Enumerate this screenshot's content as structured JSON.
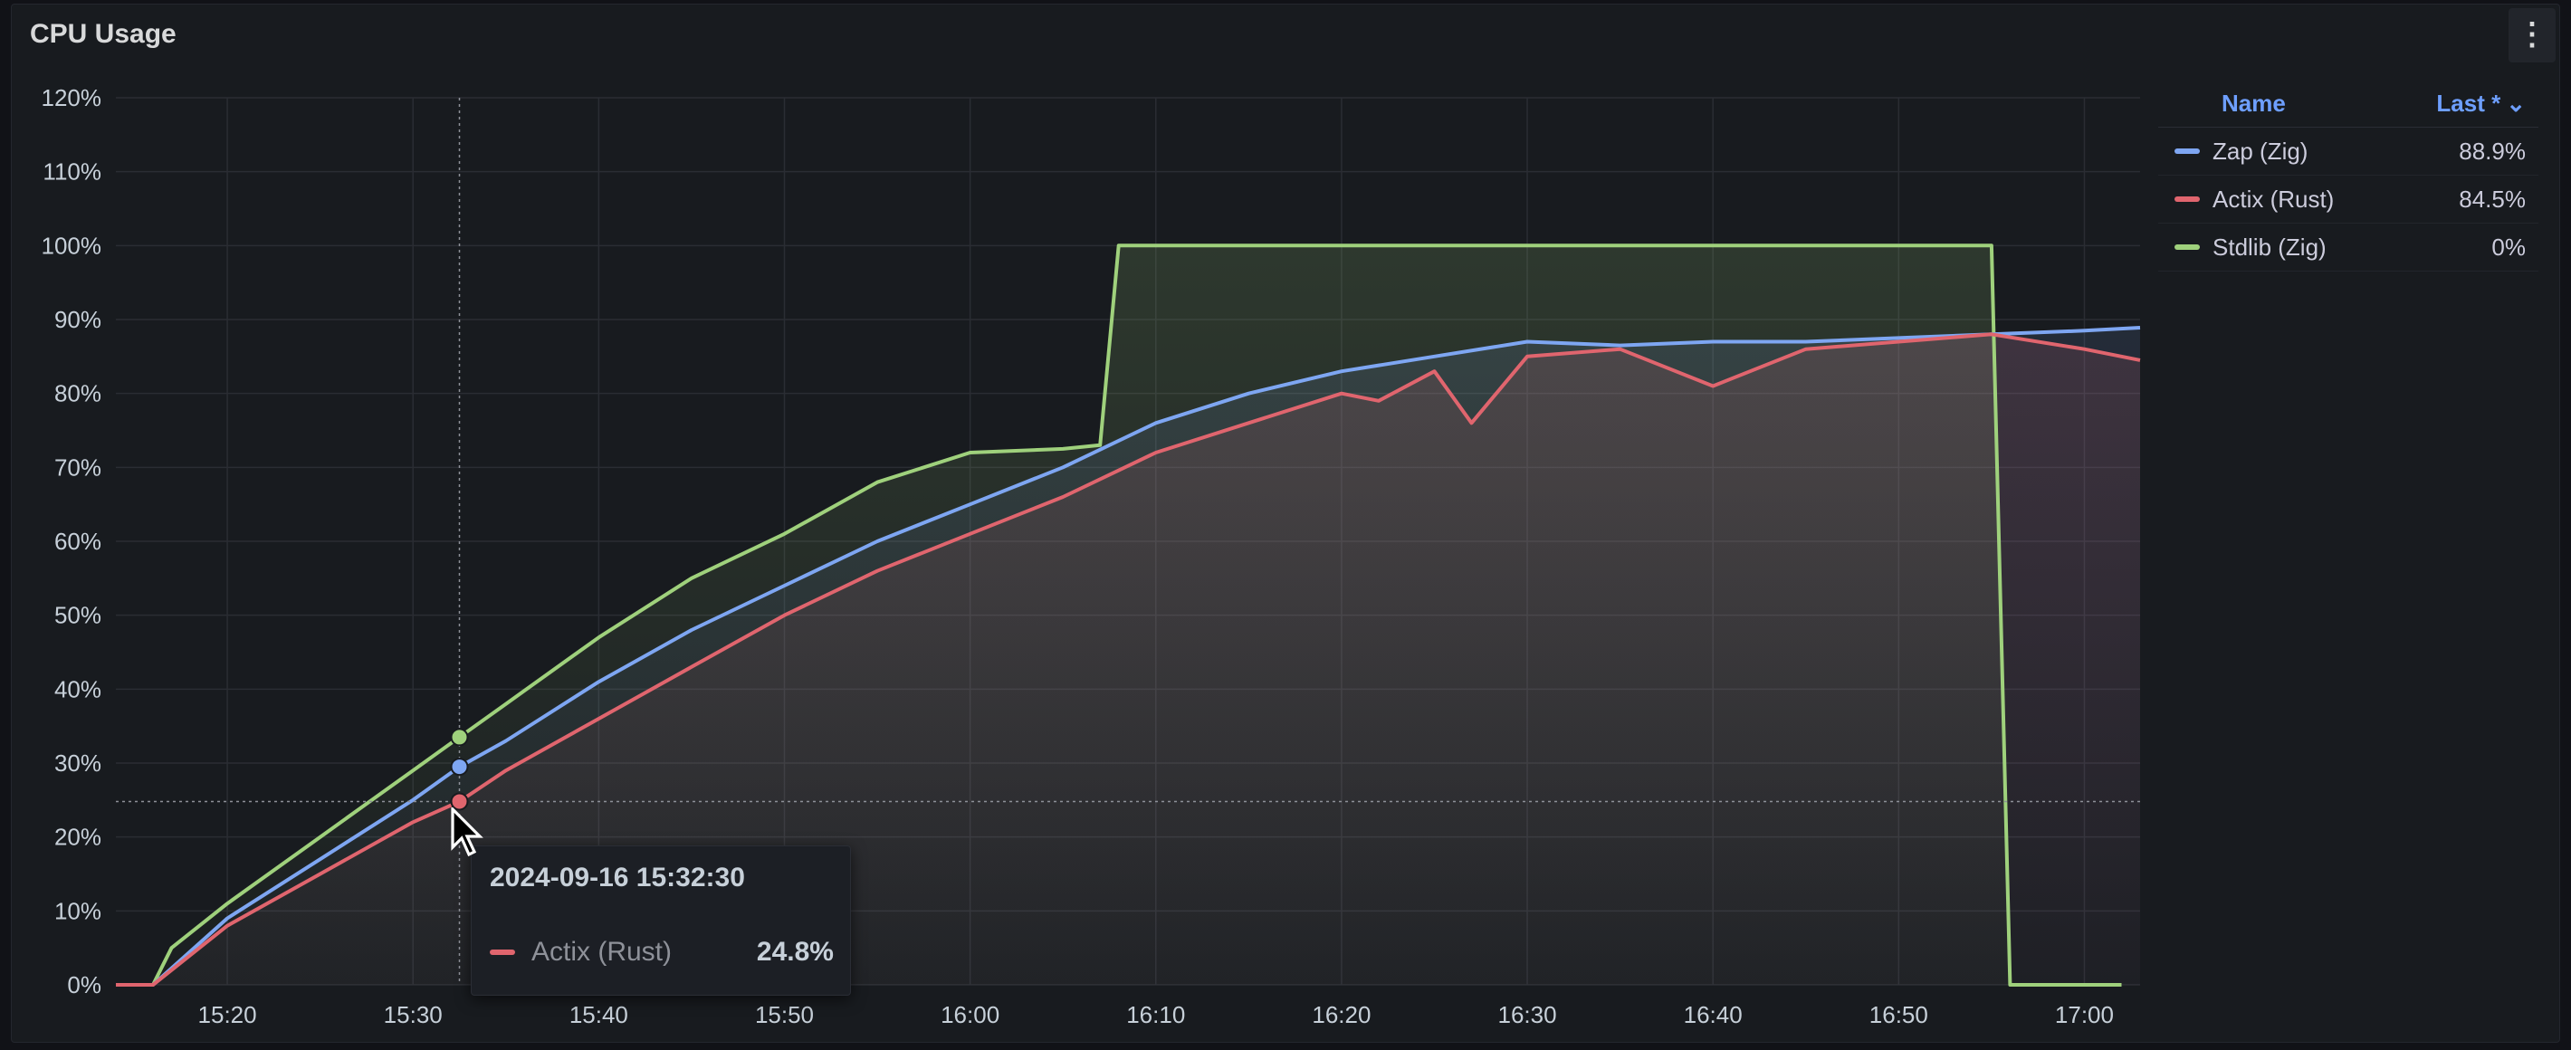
{
  "panel": {
    "title": "CPU Usage",
    "menu_icon": "kebab-vertical-icon"
  },
  "legend": {
    "header_name": "Name",
    "header_last": "Last *",
    "sort_icon": "chevron-down-icon",
    "items": [
      {
        "name": "Zap (Zig)",
        "last": "88.9%",
        "color": "#7ea6f2"
      },
      {
        "name": "Actix (Rust)",
        "last": "84.5%",
        "color": "#e0656e"
      },
      {
        "name": "Stdlib (Zig)",
        "last": "0%",
        "color": "#9fd17c"
      }
    ]
  },
  "tooltip": {
    "time": "2024-09-16 15:32:30",
    "series": "Actix (Rust)",
    "value": "24.8%",
    "color": "#e0656e"
  },
  "chart_data": {
    "type": "line",
    "ylim": [
      0,
      120
    ],
    "y_ticks": [
      "0%",
      "10%",
      "20%",
      "30%",
      "40%",
      "50%",
      "60%",
      "70%",
      "80%",
      "90%",
      "100%",
      "110%",
      "120%"
    ],
    "x_ticks": [
      "15:20",
      "15:30",
      "15:40",
      "15:50",
      "16:00",
      "16:10",
      "16:20",
      "16:30",
      "16:40",
      "16:50",
      "17:00"
    ],
    "series": [
      {
        "name": "Stdlib (Zig)",
        "color": "#9fd17c",
        "x": [
          "15:14",
          "15:16",
          "15:17",
          "15:20",
          "15:25",
          "15:30",
          "15:32:30",
          "15:35",
          "15:40",
          "15:45",
          "15:50",
          "15:55",
          "16:00",
          "16:05",
          "16:07",
          "16:08",
          "16:10",
          "16:20",
          "16:30",
          "16:40",
          "16:50",
          "16:55",
          "16:56",
          "17:00",
          "17:02"
        ],
        "values": [
          0,
          0,
          5,
          11,
          20,
          29,
          33.5,
          38,
          47,
          55,
          61,
          68,
          72,
          72.5,
          73,
          100,
          100,
          100,
          100,
          100,
          100,
          100,
          0,
          0,
          0
        ]
      },
      {
        "name": "Zap (Zig)",
        "color": "#7ea6f2",
        "x": [
          "15:14",
          "15:16",
          "15:20",
          "15:25",
          "15:30",
          "15:32:30",
          "15:35",
          "15:40",
          "15:45",
          "15:50",
          "15:55",
          "16:00",
          "16:05",
          "16:10",
          "16:15",
          "16:20",
          "16:25",
          "16:30",
          "16:35",
          "16:40",
          "16:45",
          "16:50",
          "16:55",
          "17:00",
          "17:03"
        ],
        "values": [
          0,
          0,
          9,
          17,
          25,
          29.5,
          33,
          41,
          48,
          54,
          60,
          65,
          70,
          76,
          80,
          83,
          85,
          87,
          86.5,
          87,
          87,
          87.5,
          88,
          88.5,
          88.9
        ]
      },
      {
        "name": "Actix (Rust)",
        "color": "#e0656e",
        "x": [
          "15:14",
          "15:16",
          "15:20",
          "15:25",
          "15:30",
          "15:32:30",
          "15:35",
          "15:40",
          "15:45",
          "15:50",
          "15:55",
          "16:00",
          "16:05",
          "16:10",
          "16:15",
          "16:20",
          "16:22",
          "16:25",
          "16:27",
          "16:30",
          "16:35",
          "16:40",
          "16:45",
          "16:50",
          "16:55",
          "17:00",
          "17:03"
        ],
        "values": [
          0,
          0,
          8,
          15,
          22,
          24.8,
          29,
          36,
          43,
          50,
          56,
          61,
          66,
          72,
          76,
          80,
          79,
          83,
          76,
          85,
          86,
          81,
          86,
          87,
          88,
          86,
          84.5
        ]
      }
    ],
    "grid": true,
    "legend": "right"
  }
}
